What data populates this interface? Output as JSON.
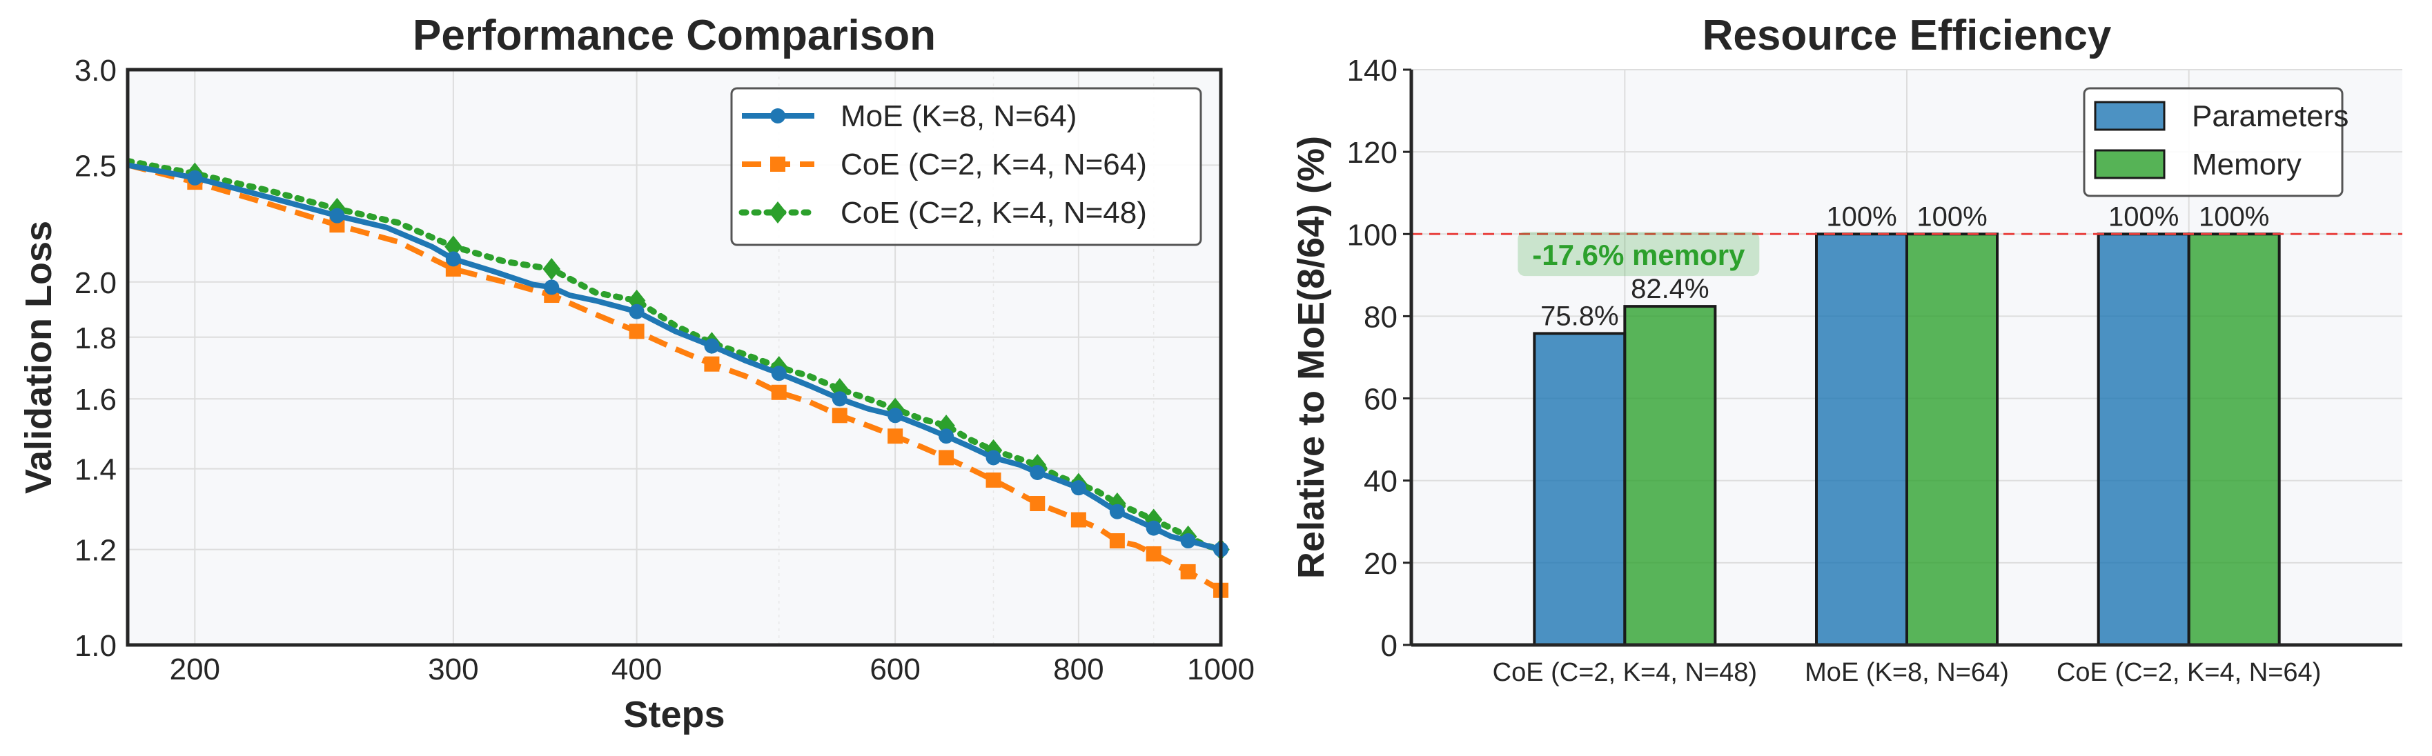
{
  "chart_data": [
    {
      "type": "line",
      "title": "Performance Comparison",
      "xlabel": "Steps",
      "ylabel": "Validation Loss",
      "xscale": "log",
      "yscale": "log",
      "xlim": [
        180,
        1000
      ],
      "ylim": [
        1.0,
        3.0
      ],
      "xticks": [
        200,
        300,
        400,
        600,
        800,
        1000
      ],
      "xtick_labels": [
        "200",
        "300",
        "400",
        "600",
        "800",
        "1000"
      ],
      "yticks": [
        1.0,
        1.2,
        1.4,
        1.6,
        1.8,
        2.0,
        2.5,
        3.0
      ],
      "ytick_labels": [
        "1.0",
        "1.2",
        "1.4",
        "1.6",
        "1.8",
        "2.0",
        "2.5",
        "3.0"
      ],
      "grid": true,
      "legend_position": "top-right",
      "series": [
        {
          "name": "MoE (K=8, N=64)",
          "color": "#1f77b4",
          "line_style": "solid",
          "marker": "circle",
          "line_x": [
            180,
            200,
            225,
            250,
            270,
            290,
            300,
            320,
            340,
            350,
            360,
            375,
            400,
            425,
            450,
            475,
            500,
            525,
            550,
            575,
            600,
            625,
            650,
            675,
            700,
            730,
            750,
            775,
            800,
            825,
            850,
            875,
            900,
            925,
            950,
            975,
            1000
          ],
          "line_y": [
            2.5,
            2.44,
            2.35,
            2.27,
            2.22,
            2.14,
            2.09,
            2.04,
            1.99,
            1.98,
            1.95,
            1.93,
            1.89,
            1.82,
            1.77,
            1.72,
            1.68,
            1.64,
            1.6,
            1.57,
            1.55,
            1.52,
            1.49,
            1.46,
            1.43,
            1.41,
            1.39,
            1.37,
            1.35,
            1.32,
            1.29,
            1.27,
            1.25,
            1.23,
            1.22,
            1.21,
            1.2
          ],
          "marker_x": [
            200,
            250,
            300,
            350,
            400,
            450,
            500,
            550,
            600,
            650,
            700,
            750,
            800,
            850,
            900,
            950,
            1000
          ],
          "marker_y": [
            2.44,
            2.27,
            2.09,
            1.98,
            1.89,
            1.77,
            1.68,
            1.6,
            1.55,
            1.49,
            1.43,
            1.39,
            1.35,
            1.29,
            1.25,
            1.22,
            1.2
          ]
        },
        {
          "name": "CoE (C=2, K=4, N=64)",
          "color": "#ff7f0e",
          "line_style": "dashed",
          "marker": "square",
          "line_x": [
            180,
            200,
            225,
            250,
            275,
            300,
            325,
            350,
            375,
            400,
            425,
            450,
            475,
            500,
            525,
            550,
            575,
            600,
            625,
            650,
            675,
            700,
            725,
            750,
            775,
            800,
            825,
            850,
            875,
            900,
            925,
            950,
            975,
            1000
          ],
          "line_y": [
            2.5,
            2.42,
            2.32,
            2.23,
            2.16,
            2.05,
            2.0,
            1.95,
            1.88,
            1.82,
            1.76,
            1.71,
            1.67,
            1.62,
            1.59,
            1.55,
            1.52,
            1.49,
            1.46,
            1.43,
            1.4,
            1.37,
            1.34,
            1.31,
            1.29,
            1.27,
            1.25,
            1.22,
            1.21,
            1.19,
            1.17,
            1.15,
            1.13,
            1.11
          ],
          "marker_x": [
            200,
            250,
            300,
            350,
            400,
            450,
            500,
            550,
            600,
            650,
            700,
            750,
            800,
            850,
            900,
            950,
            1000
          ],
          "marker_y": [
            2.42,
            2.23,
            2.05,
            1.95,
            1.82,
            1.71,
            1.62,
            1.55,
            1.49,
            1.43,
            1.37,
            1.31,
            1.27,
            1.22,
            1.19,
            1.15,
            1.11
          ]
        },
        {
          "name": "CoE (C=2, K=4, N=48)",
          "color": "#2ca02c",
          "line_style": "dotted",
          "marker": "diamond",
          "line_x": [
            180,
            200,
            225,
            250,
            275,
            300,
            325,
            350,
            375,
            400,
            425,
            450,
            475,
            500,
            525,
            550,
            575,
            600,
            625,
            650,
            675,
            700,
            725,
            750,
            775,
            800,
            825,
            850,
            875,
            900,
            925,
            950,
            975,
            1000
          ],
          "line_y": [
            2.52,
            2.46,
            2.38,
            2.3,
            2.24,
            2.14,
            2.08,
            2.05,
            1.96,
            1.93,
            1.84,
            1.78,
            1.74,
            1.7,
            1.67,
            1.63,
            1.6,
            1.57,
            1.54,
            1.52,
            1.48,
            1.45,
            1.43,
            1.41,
            1.38,
            1.36,
            1.34,
            1.31,
            1.29,
            1.27,
            1.25,
            1.23,
            1.21,
            1.2
          ],
          "marker_x": [
            200,
            250,
            300,
            350,
            400,
            450,
            500,
            550,
            600,
            650,
            700,
            750,
            800,
            850,
            900,
            950,
            1000
          ],
          "marker_y": [
            2.46,
            2.3,
            2.14,
            2.05,
            1.93,
            1.78,
            1.7,
            1.63,
            1.57,
            1.52,
            1.45,
            1.41,
            1.36,
            1.31,
            1.27,
            1.23,
            1.2
          ]
        }
      ]
    },
    {
      "type": "bar",
      "title": "Resource Efficiency",
      "xlabel": "",
      "ylabel": "Relative to MoE(8/64) (%)",
      "ylim": [
        0,
        140
      ],
      "yticks": [
        0,
        20,
        40,
        60,
        80,
        100,
        120,
        140
      ],
      "categories": [
        "CoE (C=2, K=4, N=48)",
        "MoE (K=8, N=64)",
        "CoE (C=2, K=4, N=64)"
      ],
      "series": [
        {
          "name": "Parameters",
          "color": "#1f77b4",
          "values": [
            75.8,
            100,
            100
          ],
          "value_labels": [
            "75.8%",
            "100%",
            "100%"
          ]
        },
        {
          "name": "Memory",
          "color": "#2ca02c",
          "values": [
            82.4,
            100,
            100
          ],
          "value_labels": [
            "82.4%",
            "100%",
            "100%"
          ]
        }
      ],
      "reference_line": {
        "y": 100,
        "color": "#e8423f",
        "style": "dashed"
      },
      "annotation": {
        "text": "-17.6% memory",
        "color": "#2ca02c",
        "x_category": 0,
        "y": 95
      },
      "grid": true,
      "legend_position": "top-right"
    }
  ]
}
